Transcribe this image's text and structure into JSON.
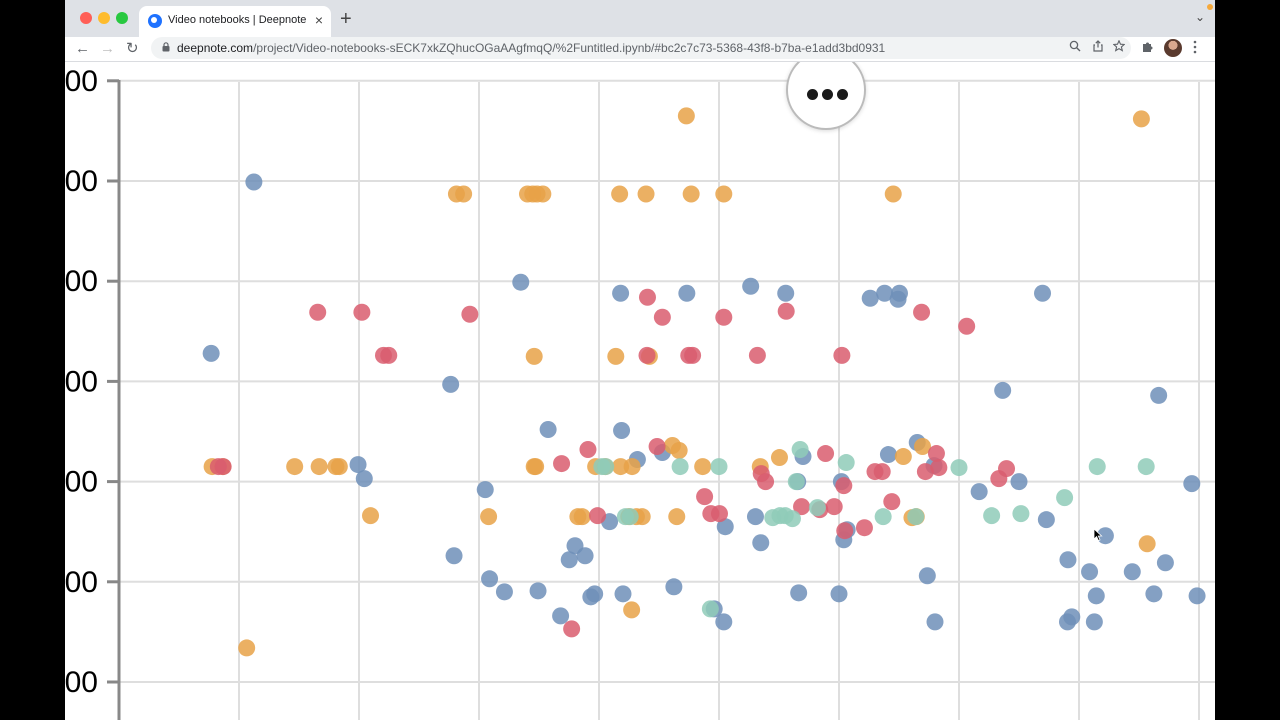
{
  "browser": {
    "tab": {
      "title": "Video notebooks | Deepnote",
      "close": "×"
    },
    "new_tab": "+",
    "tabstrip_menu": "⌄",
    "nav": {
      "back": "←",
      "forward": "→",
      "reload": "↻"
    },
    "url": {
      "host": "deepnote.com",
      "path": "/project/Video-notebooks-sECK7xkZQhucOGaAAgfmqQ/%2Funtitled.ipynb/#bc2c7c73-5368-43f8-b7ba-e1add3bd0931"
    },
    "icons": {
      "zoom": "search-icon",
      "share": "share-icon",
      "star": "star-icon",
      "extensions": "puzzle-icon",
      "menu": "kebab-icon"
    }
  },
  "colors": {
    "blue": "#6f8fb8",
    "orange": "#e8a248",
    "red": "#d95d6e",
    "teal": "#8fcbb8",
    "grid": "#dedede",
    "axis": "#888888"
  },
  "chart_data": {
    "type": "scatter",
    "yticks": [
      "00",
      "00",
      "00",
      "00",
      "00",
      "00",
      "00"
    ],
    "series": [
      {
        "color": "blue",
        "points": [
          [
            3.84,
            3.28
          ],
          [
            5.62,
            4.99
          ],
          [
            9.96,
            2.17
          ],
          [
            10.22,
            2.03
          ],
          [
            13.82,
            2.97
          ],
          [
            13.96,
            1.26
          ],
          [
            15.26,
            1.92
          ],
          [
            15.44,
            1.03
          ],
          [
            16.06,
            0.9
          ],
          [
            16.74,
            3.99
          ],
          [
            17.46,
            0.91
          ],
          [
            17.88,
            2.52
          ],
          [
            18.4,
            0.66
          ],
          [
            18.76,
            1.22
          ],
          [
            19.0,
            1.36
          ],
          [
            19.42,
            1.26
          ],
          [
            19.66,
            0.85
          ],
          [
            19.82,
            0.88
          ],
          [
            20.44,
            1.6
          ],
          [
            20.9,
            3.88
          ],
          [
            20.94,
            2.51
          ],
          [
            21.0,
            0.88
          ],
          [
            21.6,
            2.22
          ],
          [
            22.64,
            2.29
          ],
          [
            23.12,
            0.95
          ],
          [
            23.66,
            3.88
          ],
          [
            24.8,
            0.73
          ],
          [
            25.2,
            0.6
          ],
          [
            25.26,
            1.55
          ],
          [
            26.32,
            3.95
          ],
          [
            26.52,
            1.65
          ],
          [
            26.74,
            1.39
          ],
          [
            27.78,
            3.88
          ],
          [
            28.32,
            0.89
          ],
          [
            28.28,
            2.0
          ],
          [
            28.5,
            2.25
          ],
          [
            30.0,
            0.88
          ],
          [
            30.1,
            2.0
          ],
          [
            30.2,
            1.42
          ],
          [
            30.34,
            1.52
          ],
          [
            31.3,
            3.83
          ],
          [
            31.9,
            3.88
          ],
          [
            32.06,
            2.27
          ],
          [
            32.46,
            3.82
          ],
          [
            32.52,
            3.88
          ],
          [
            33.26,
            2.39
          ],
          [
            33.68,
            1.06
          ],
          [
            33.96,
            2.16
          ],
          [
            34.0,
            0.6
          ],
          [
            35.84,
            1.9
          ],
          [
            36.82,
            2.91
          ],
          [
            37.5,
            2.0
          ],
          [
            38.48,
            3.88
          ],
          [
            38.64,
            1.62
          ],
          [
            39.52,
            0.6
          ],
          [
            39.54,
            1.22
          ],
          [
            39.7,
            0.65
          ],
          [
            40.44,
            1.1
          ],
          [
            40.64,
            0.6
          ],
          [
            40.72,
            0.86
          ],
          [
            41.1,
            1.46
          ],
          [
            42.22,
            1.1
          ],
          [
            43.12,
            0.88
          ],
          [
            43.32,
            2.86
          ],
          [
            43.6,
            1.19
          ],
          [
            44.7,
            1.98
          ],
          [
            44.92,
            0.86
          ]
        ]
      },
      {
        "color": "orange",
        "points": [
          [
            3.88,
            2.15
          ],
          [
            4.32,
            2.15
          ],
          [
            5.32,
            0.34
          ],
          [
            7.32,
            2.15
          ],
          [
            8.34,
            2.15
          ],
          [
            9.04,
            2.15
          ],
          [
            9.18,
            2.15
          ],
          [
            10.48,
            1.66
          ],
          [
            14.06,
            4.87
          ],
          [
            14.36,
            4.87
          ],
          [
            15.4,
            1.65
          ],
          [
            17.02,
            4.87
          ],
          [
            17.24,
            4.87
          ],
          [
            17.42,
            4.87
          ],
          [
            17.66,
            4.87
          ],
          [
            17.3,
            3.25
          ],
          [
            17.3,
            2.15
          ],
          [
            17.36,
            2.15
          ],
          [
            19.12,
            1.65
          ],
          [
            19.3,
            1.65
          ],
          [
            19.86,
            2.15
          ],
          [
            20.26,
            2.15
          ],
          [
            20.7,
            3.25
          ],
          [
            20.86,
            4.87
          ],
          [
            20.9,
            2.15
          ],
          [
            21.24,
            1.65
          ],
          [
            21.36,
            0.72
          ],
          [
            21.38,
            2.15
          ],
          [
            21.56,
            1.65
          ],
          [
            21.8,
            1.65
          ],
          [
            21.96,
            4.87
          ],
          [
            22.1,
            3.25
          ],
          [
            23.06,
            2.36
          ],
          [
            23.24,
            1.65
          ],
          [
            23.34,
            2.31
          ],
          [
            23.64,
            5.65
          ],
          [
            23.84,
            4.87
          ],
          [
            24.32,
            2.15
          ],
          [
            25.2,
            4.87
          ],
          [
            26.72,
            2.15
          ],
          [
            27.52,
            2.24
          ],
          [
            32.26,
            4.87
          ],
          [
            32.68,
            2.25
          ],
          [
            33.04,
            1.64
          ],
          [
            33.22,
            1.65
          ],
          [
            33.48,
            2.35
          ],
          [
            42.6,
            5.62
          ],
          [
            42.84,
            1.38
          ]
        ]
      },
      {
        "color": "red",
        "points": [
          [
            4.14,
            2.15
          ],
          [
            4.34,
            2.15
          ],
          [
            8.28,
            3.69
          ],
          [
            10.12,
            3.69
          ],
          [
            11.02,
            3.26
          ],
          [
            11.24,
            3.26
          ],
          [
            14.62,
            3.67
          ],
          [
            18.44,
            2.18
          ],
          [
            18.86,
            0.53
          ],
          [
            19.54,
            2.32
          ],
          [
            19.94,
            1.66
          ],
          [
            22.0,
            3.26
          ],
          [
            22.02,
            3.84
          ],
          [
            22.42,
            2.35
          ],
          [
            22.64,
            3.64
          ],
          [
            23.74,
            3.26
          ],
          [
            23.9,
            3.26
          ],
          [
            24.4,
            1.85
          ],
          [
            24.66,
            1.68
          ],
          [
            25.02,
            1.68
          ],
          [
            25.2,
            3.64
          ],
          [
            26.6,
            3.26
          ],
          [
            26.76,
            2.08
          ],
          [
            26.94,
            2.0
          ],
          [
            27.8,
            3.7
          ],
          [
            28.44,
            1.75
          ],
          [
            29.2,
            1.72
          ],
          [
            29.44,
            2.28
          ],
          [
            29.8,
            1.75
          ],
          [
            30.12,
            3.26
          ],
          [
            30.2,
            1.96
          ],
          [
            30.24,
            1.51
          ],
          [
            31.06,
            1.54
          ],
          [
            31.5,
            2.1
          ],
          [
            31.8,
            2.1
          ],
          [
            32.2,
            1.8
          ],
          [
            33.44,
            3.69
          ],
          [
            33.6,
            2.1
          ],
          [
            34.06,
            2.28
          ],
          [
            34.16,
            2.14
          ],
          [
            35.32,
            3.55
          ],
          [
            36.66,
            2.03
          ],
          [
            36.98,
            2.13
          ]
        ]
      },
      {
        "color": "teal",
        "points": [
          [
            20.12,
            2.15
          ],
          [
            20.28,
            2.15
          ],
          [
            21.1,
            1.65
          ],
          [
            21.3,
            1.65
          ],
          [
            23.38,
            2.15
          ],
          [
            24.64,
            0.73
          ],
          [
            25.0,
            2.15
          ],
          [
            27.24,
            1.64
          ],
          [
            27.54,
            1.66
          ],
          [
            27.76,
            1.66
          ],
          [
            28.06,
            1.63
          ],
          [
            28.22,
            2.0
          ],
          [
            28.38,
            2.32
          ],
          [
            29.1,
            1.74
          ],
          [
            30.3,
            2.19
          ],
          [
            31.84,
            1.65
          ],
          [
            33.2,
            1.65
          ],
          [
            35.0,
            2.14
          ],
          [
            36.36,
            1.66
          ],
          [
            37.58,
            1.68
          ],
          [
            39.4,
            1.84
          ],
          [
            40.76,
            2.15
          ],
          [
            42.8,
            2.15
          ]
        ]
      }
    ]
  }
}
